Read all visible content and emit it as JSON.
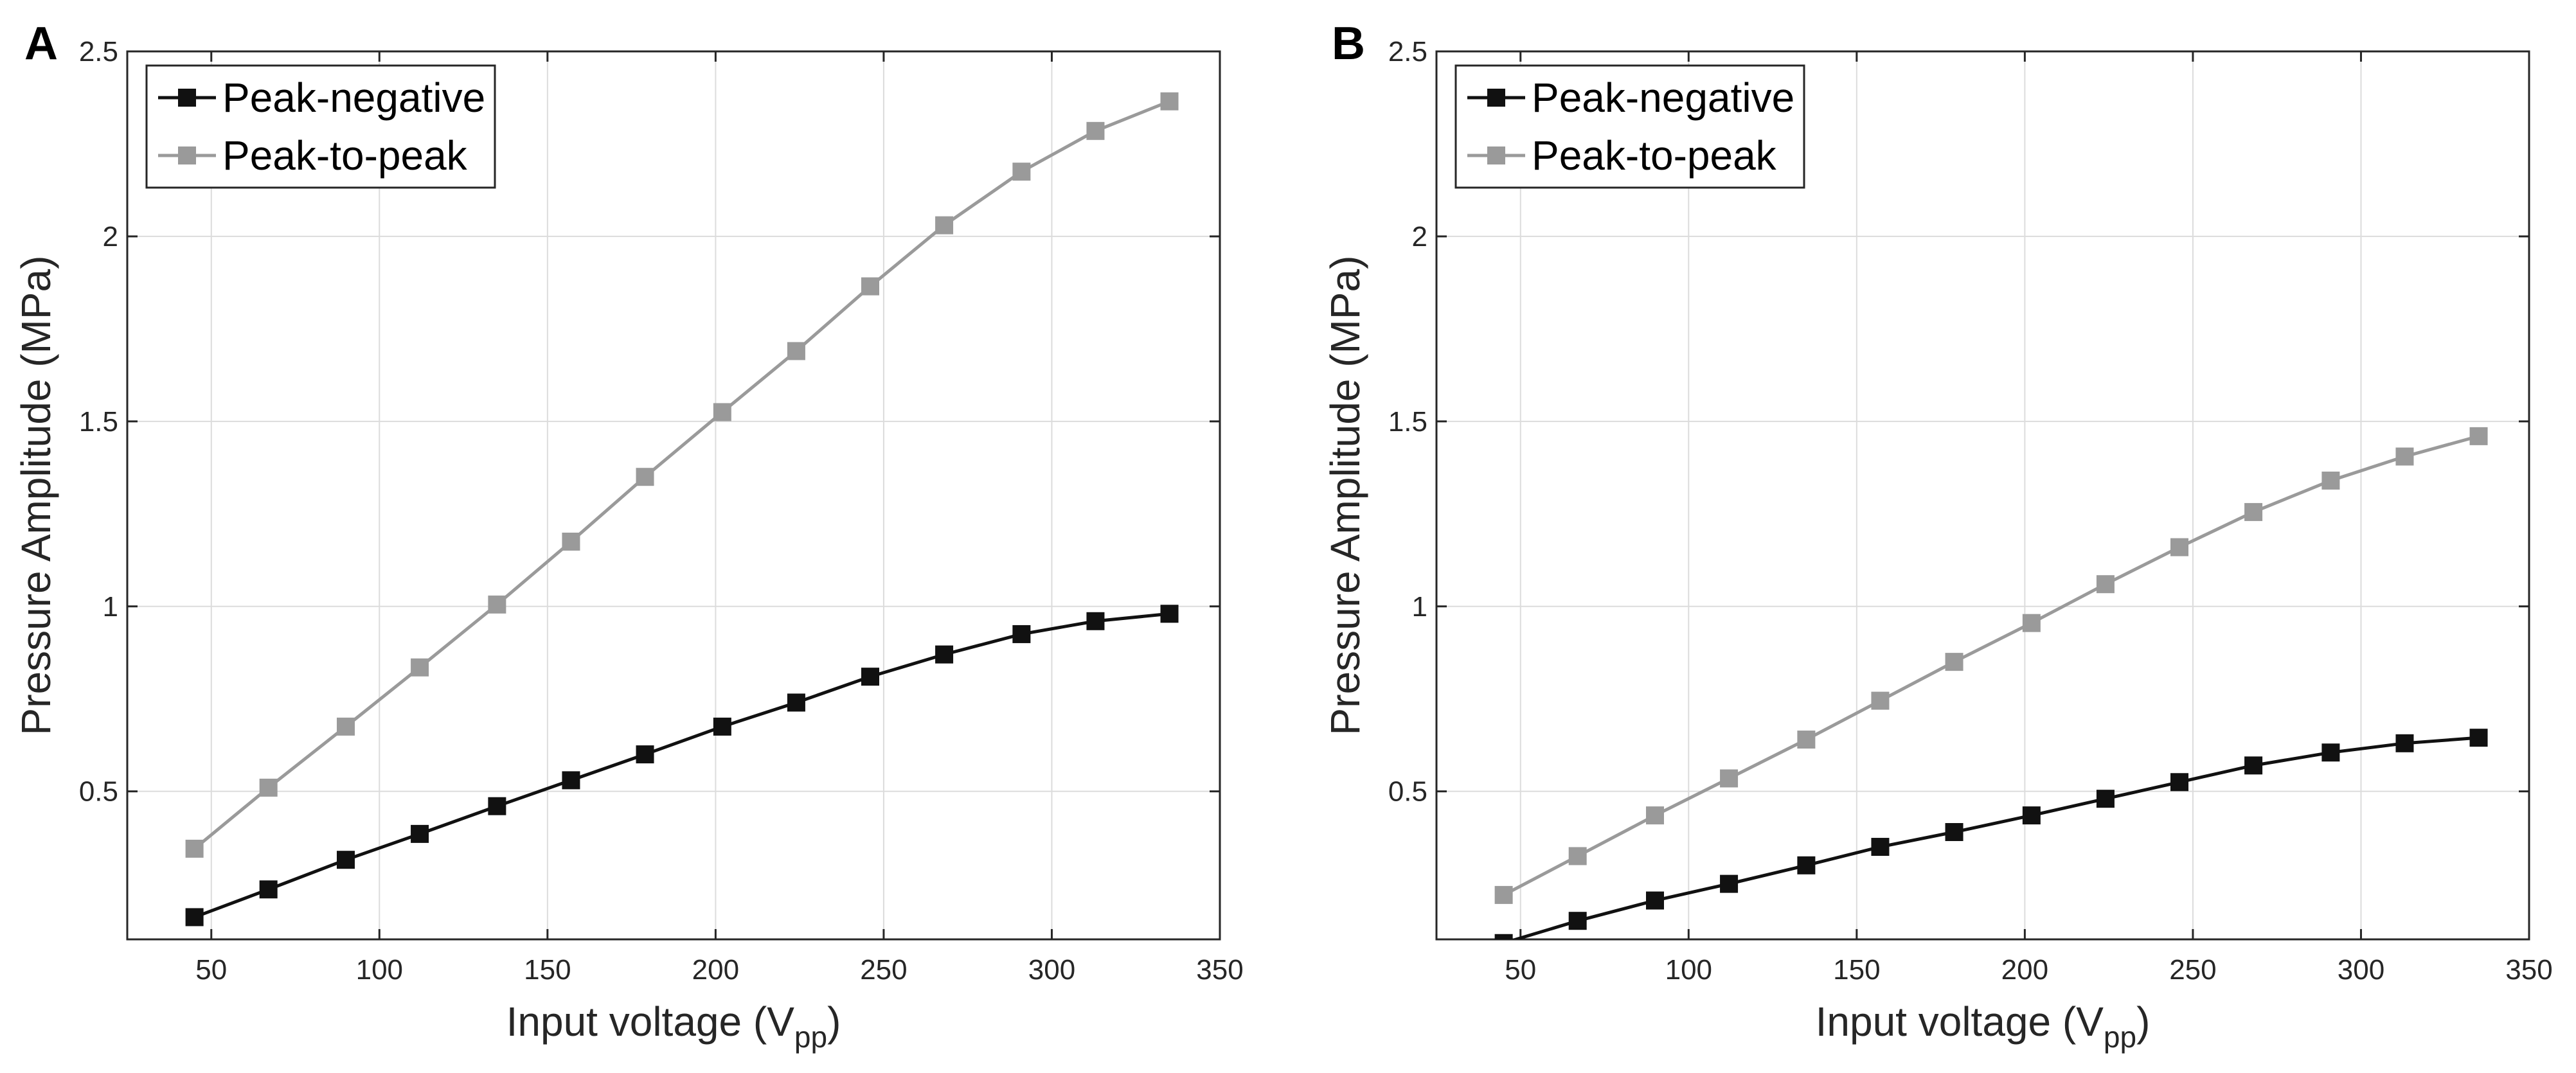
{
  "colors": {
    "peak_negative": "#111111",
    "peak_to_peak": "#9a9a9a",
    "grid": "#dcdcdc",
    "axis": "#262626"
  },
  "chart_data": [
    {
      "panel_label": "A",
      "type": "line",
      "xlabel": "Input voltage (V",
      "xlabel_sub": "pp",
      "xlabel_close": ")",
      "ylabel": "Pressure Amplitude (MPa)",
      "xlim": [
        25,
        350
      ],
      "ylim": [
        0.1,
        2.5
      ],
      "xticks": [
        50,
        100,
        150,
        200,
        250,
        300,
        350
      ],
      "yticks": [
        0.5,
        1,
        1.5,
        2,
        2.5
      ],
      "xtick_labels": [
        "50",
        "100",
        "150",
        "200",
        "250",
        "300",
        "350"
      ],
      "ytick_labels": [
        "0.5",
        "1",
        "1.5",
        "2",
        "2.5"
      ],
      "grid": true,
      "legend_position": "top-left",
      "x": [
        45,
        67,
        90,
        112,
        135,
        157,
        179,
        202,
        224,
        246,
        268,
        291,
        313,
        335
      ],
      "series": [
        {
          "name": "Peak-negative",
          "color_key": "peak_negative",
          "values": [
            0.16,
            0.235,
            0.315,
            0.385,
            0.46,
            0.53,
            0.6,
            0.675,
            0.74,
            0.81,
            0.87,
            0.925,
            0.96,
            0.98
          ]
        },
        {
          "name": "Peak-to-peak",
          "color_key": "peak_to_peak",
          "values": [
            0.345,
            0.51,
            0.675,
            0.835,
            1.005,
            1.175,
            1.35,
            1.525,
            1.69,
            1.865,
            2.03,
            2.175,
            2.285,
            2.365
          ]
        }
      ]
    },
    {
      "panel_label": "B",
      "type": "line",
      "xlabel": "Input voltage (V",
      "xlabel_sub": "pp",
      "xlabel_close": ")",
      "ylabel": "Pressure Amplitude (MPa)",
      "xlim": [
        25,
        350
      ],
      "ylim": [
        0.1,
        2.5
      ],
      "xticks": [
        50,
        100,
        150,
        200,
        250,
        300,
        350
      ],
      "yticks": [
        0.5,
        1,
        1.5,
        2,
        2.5
      ],
      "xtick_labels": [
        "50",
        "100",
        "150",
        "200",
        "250",
        "300",
        "350"
      ],
      "ytick_labels": [
        "0.5",
        "1",
        "1.5",
        "2",
        "2.5"
      ],
      "grid": true,
      "legend_position": "top-left",
      "x": [
        45,
        67,
        90,
        112,
        135,
        157,
        179,
        202,
        224,
        246,
        268,
        291,
        313,
        335
      ],
      "series": [
        {
          "name": "Peak-negative",
          "color_key": "peak_negative",
          "values": [
            0.09,
            0.15,
            0.205,
            0.25,
            0.3,
            0.35,
            0.39,
            0.435,
            0.48,
            0.525,
            0.57,
            0.605,
            0.63,
            0.645
          ]
        },
        {
          "name": "Peak-to-peak",
          "color_key": "peak_to_peak",
          "values": [
            0.22,
            0.325,
            0.435,
            0.535,
            0.64,
            0.745,
            0.85,
            0.955,
            1.06,
            1.16,
            1.255,
            1.34,
            1.405,
            1.46
          ]
        }
      ]
    }
  ]
}
